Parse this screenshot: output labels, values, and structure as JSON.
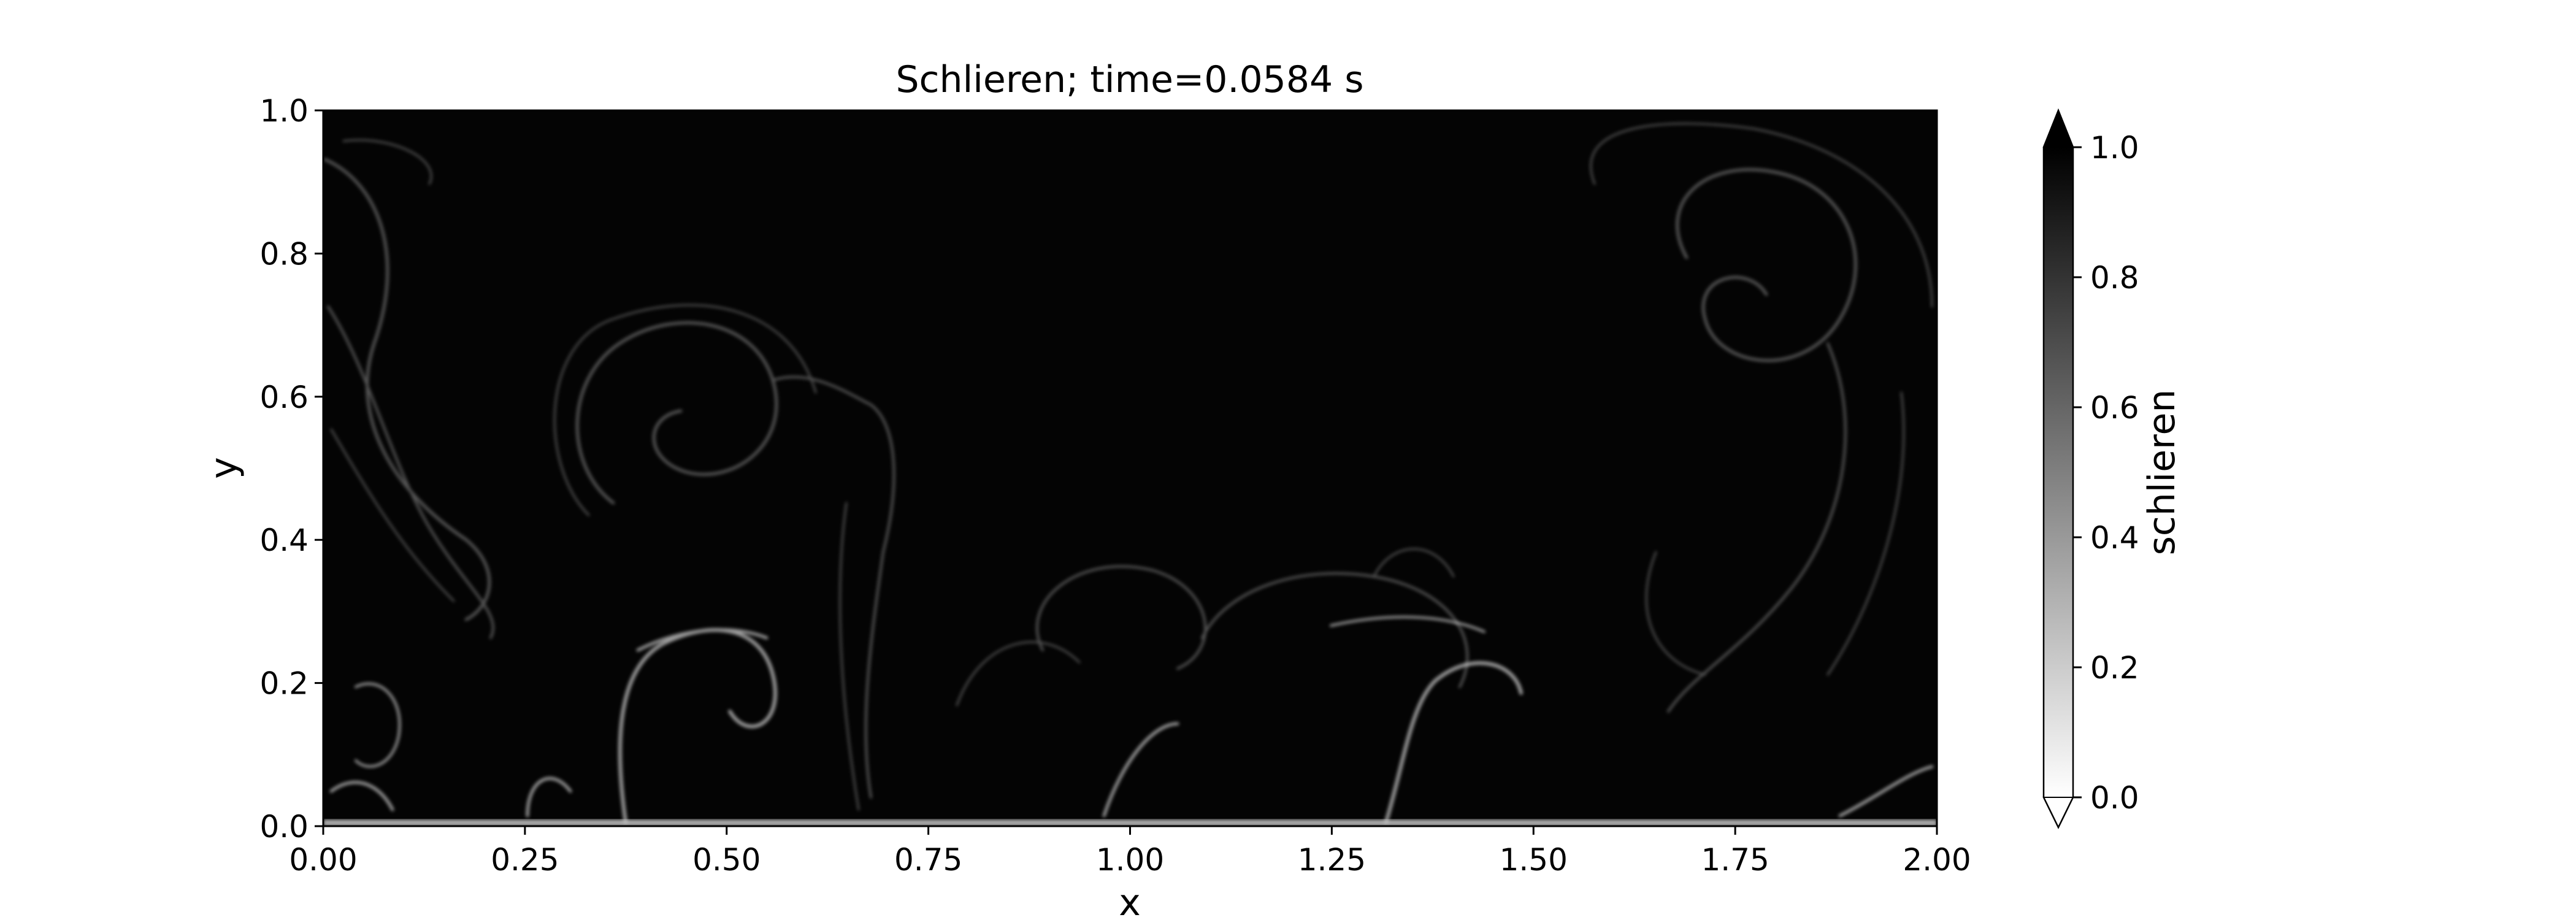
{
  "chart_data": {
    "type": "heatmap",
    "title": "Schlieren; time=0.0584 s",
    "xlabel": "x",
    "ylabel": "y",
    "xlim": [
      0,
      2
    ],
    "ylim": [
      0,
      1
    ],
    "x_ticks": [
      "0.00",
      "0.25",
      "0.50",
      "0.75",
      "1.00",
      "1.25",
      "1.50",
      "1.75",
      "2.00"
    ],
    "y_ticks": [
      "0.0",
      "0.2",
      "0.4",
      "0.6",
      "0.8",
      "1.0"
    ],
    "colormap": "gray_r",
    "grid": false,
    "colorbar": {
      "label": "schlieren",
      "range": [
        0,
        1
      ],
      "extend": "both",
      "ticks": [
        "0.0",
        "0.2",
        "0.4",
        "0.6",
        "0.8",
        "1.0"
      ]
    }
  }
}
